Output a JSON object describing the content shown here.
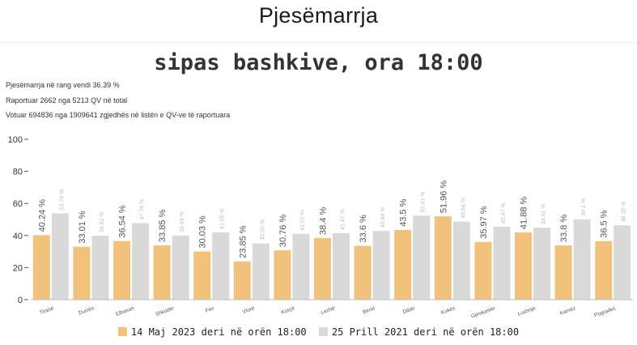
{
  "header": {
    "title": "Pjesëmarrja"
  },
  "subtitle": "sipas bashkive, ora 18:00",
  "stats": [
    "Pjesëmarrja në rang vendi 36.39 %",
    "Raportuar 2662 nga 5213 QV në total",
    "Votuar 694836 nga 1909641 zgjedhës në listën e QV-ve të raportuara"
  ],
  "colors": {
    "series_2023": "#f0c27b",
    "series_2021": "#d9d9d9"
  },
  "chart_data": {
    "type": "bar",
    "categories": [
      "Tiranë",
      "Durrës",
      "Elbasan",
      "Shkodër",
      "Fier",
      "Vlorë",
      "Korçë",
      "Lezhë",
      "Berat",
      "Dibër",
      "Kukës",
      "Gjirokastër",
      "Lushnje",
      "Kamëz",
      "Pogradec"
    ],
    "series": [
      {
        "name": "14 Maj 2023 deri në orën 18:00",
        "values": [
          40.24,
          33.01,
          36.54,
          33.85,
          30.03,
          23.85,
          30.76,
          38.4,
          33.6,
          43.5,
          51.96,
          35.97,
          41.88,
          33.8,
          36.5
        ],
        "labels": [
          "40.24 %",
          "33.01 %",
          "36.54 %",
          "33.85 %",
          "30.03 %",
          "23.85 %",
          "30.76 %",
          "38.4 %",
          "33.6 %",
          "43.5 %",
          "51.96 %",
          "35.97 %",
          "41.88 %",
          "33.8 %",
          "36.5 %"
        ]
      },
      {
        "name": "25 Prill 2021 deri në orën 18:00",
        "values": [
          53.78,
          39.82,
          47.76,
          39.94,
          41.95,
          35.03,
          41.07,
          41.47,
          42.84,
          52.41,
          48.64,
          45.47,
          44.91,
          50.1,
          46.35
        ],
        "labels": [
          "53.78 %",
          "39.82 %",
          "47.76 %",
          "39.94 %",
          "41.95 %",
          "35.03 %",
          "41.07 %",
          "41.47 %",
          "42.84 %",
          "52.41 %",
          "48.64 %",
          "45.47 %",
          "44.91 %",
          "50.1 %",
          "46.35 %"
        ]
      }
    ],
    "y_ticks": [
      "100",
      "80",
      "60",
      "40",
      "20",
      "0"
    ],
    "ylim": [
      0,
      100
    ],
    "legend_position": "bottom"
  }
}
